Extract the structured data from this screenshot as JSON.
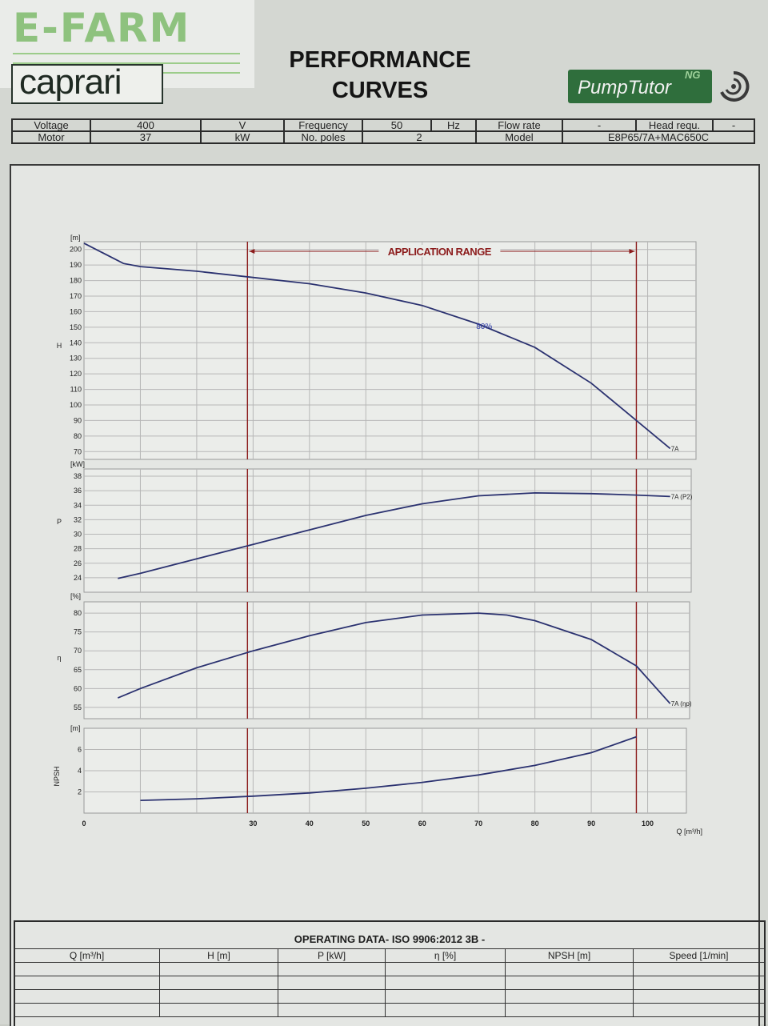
{
  "watermark": {
    "text": "E-FARM"
  },
  "logo": {
    "brand": "caprari"
  },
  "header": {
    "title_line1": "PERFORMANCE",
    "title_line2": "CURVES",
    "tool_name": "PumpTutor",
    "tool_suffix": "NG"
  },
  "info_table": {
    "row1": [
      "Voltage",
      "400",
      "V",
      "Frequency",
      "50",
      "Hz",
      "Flow rate",
      "-",
      "Head requ.",
      "-"
    ],
    "row2": [
      "Motor",
      "37",
      "kW",
      "No. poles",
      "2",
      "Model",
      "E8P65/7A+MAC650C"
    ]
  },
  "colors": {
    "curve": "#2b3270",
    "range": "#8c1c1c",
    "grid": "#b7b7b7",
    "plot_bg": "#ebedea"
  },
  "chart_data": [
    {
      "type": "line",
      "subplot": "head",
      "yunit": "[m]",
      "ylabel": "H",
      "ylim": [
        65,
        205
      ],
      "yticks": [
        70,
        80,
        90,
        100,
        110,
        120,
        130,
        140,
        150,
        160,
        170,
        180,
        190,
        200
      ],
      "xlim": [
        0,
        110
      ],
      "annotation": "APPLICATION RANGE",
      "application_range": [
        29,
        98
      ],
      "operating_point_label": "80%",
      "series": [
        {
          "name": "7A",
          "x": [
            0,
            7,
            10,
            20,
            30,
            40,
            50,
            60,
            70,
            80,
            90,
            98,
            104
          ],
          "y": [
            204,
            191,
            189,
            186,
            182,
            178,
            172,
            164,
            152,
            137,
            114,
            90,
            72
          ]
        }
      ]
    },
    {
      "type": "line",
      "subplot": "power",
      "yunit": "[kW]",
      "ylabel": "P",
      "ylim": [
        22,
        39
      ],
      "yticks": [
        24,
        26,
        28,
        30,
        32,
        34,
        36,
        38
      ],
      "xlim": [
        0,
        110
      ],
      "series": [
        {
          "name": "7A (P2)",
          "x": [
            6,
            10,
            20,
            30,
            40,
            50,
            60,
            70,
            80,
            90,
            98,
            104
          ],
          "y": [
            23.9,
            24.6,
            26.6,
            28.6,
            30.6,
            32.6,
            34.2,
            35.3,
            35.7,
            35.6,
            35.4,
            35.2
          ]
        }
      ]
    },
    {
      "type": "line",
      "subplot": "efficiency",
      "yunit": "[%]",
      "ylabel": "η",
      "ylim": [
        52,
        83
      ],
      "yticks": [
        55,
        60,
        65,
        70,
        75,
        80
      ],
      "xlim": [
        0,
        110
      ],
      "series": [
        {
          "name": "7A (ηp)",
          "x": [
            6,
            10,
            20,
            30,
            40,
            50,
            60,
            70,
            75,
            80,
            90,
            98,
            104
          ],
          "y": [
            57.5,
            60,
            65.5,
            70,
            74,
            77.5,
            79.5,
            80,
            79.5,
            78,
            73,
            66,
            56
          ]
        }
      ]
    },
    {
      "type": "line",
      "subplot": "npsh",
      "yunit": "[m]",
      "ylabel": "NPSH",
      "ylim": [
        0,
        8
      ],
      "yticks": [
        2,
        4,
        6
      ],
      "xlim": [
        0,
        110
      ],
      "xlabel": "Q [m³/h]",
      "xticks": [
        0,
        30,
        40,
        50,
        60,
        70,
        80,
        90,
        100
      ],
      "series": [
        {
          "name": "",
          "x": [
            10,
            20,
            30,
            40,
            50,
            60,
            70,
            80,
            90,
            98
          ],
          "y": [
            1.2,
            1.35,
            1.6,
            1.9,
            2.35,
            2.9,
            3.6,
            4.5,
            5.7,
            7.2
          ]
        }
      ]
    }
  ],
  "operating_data": {
    "title": "OPERATING DATA- ISO 9906:2012 3B -",
    "columns": [
      "Q [m³/h]",
      "H [m]",
      "P [kW]",
      "η [%]",
      "NPSH [m]",
      "Speed [1/min]"
    ]
  }
}
